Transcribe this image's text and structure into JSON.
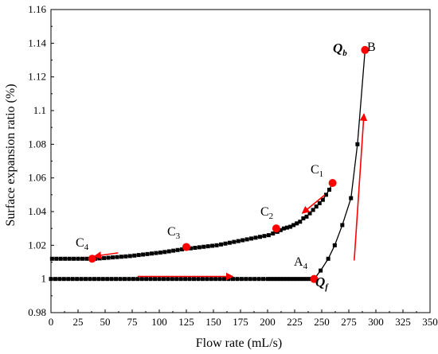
{
  "chart_data": {
    "type": "line",
    "xlabel": "Flow rate (mL/s)",
    "ylabel": "Surface expansion ratio (%)",
    "xlim": [
      0,
      350
    ],
    "ylim": [
      0.98,
      1.16
    ],
    "x_ticks": [
      0,
      25,
      50,
      75,
      100,
      125,
      150,
      175,
      200,
      225,
      250,
      275,
      300,
      325,
      350
    ],
    "y_ticks": [
      0.98,
      1,
      1.02,
      1.04,
      1.06,
      1.08,
      1.1,
      1.12,
      1.14,
      1.16
    ],
    "y_tick_labels": [
      "0.98",
      "1",
      "1.02",
      "1.04",
      "1.06",
      "1.08",
      "1.1",
      "1.12",
      "1.14",
      "1.16"
    ],
    "grid": false,
    "series": [
      {
        "values": [
          [
            0,
            1.0
          ],
          [
            4,
            1.0
          ],
          [
            8,
            1.0
          ],
          [
            12,
            1.0
          ],
          [
            16,
            1.0
          ],
          [
            20,
            1.0
          ],
          [
            24,
            1.0
          ],
          [
            28,
            1.0
          ],
          [
            32,
            1.0
          ],
          [
            36,
            1.0
          ],
          [
            40,
            1.0
          ],
          [
            44,
            1.0
          ],
          [
            48,
            1.0
          ],
          [
            52,
            1.0
          ],
          [
            56,
            1.0
          ],
          [
            60,
            1.0
          ],
          [
            64,
            1.0
          ],
          [
            68,
            1.0
          ],
          [
            72,
            1.0
          ],
          [
            76,
            1.0
          ],
          [
            80,
            1.0
          ],
          [
            84,
            1.0
          ],
          [
            88,
            1.0
          ],
          [
            92,
            1.0
          ],
          [
            96,
            1.0
          ],
          [
            100,
            1.0
          ],
          [
            104,
            1.0
          ],
          [
            108,
            1.0
          ],
          [
            112,
            1.0
          ],
          [
            116,
            1.0
          ],
          [
            120,
            1.0
          ],
          [
            124,
            1.0
          ],
          [
            128,
            1.0
          ],
          [
            132,
            1.0
          ],
          [
            136,
            1.0
          ],
          [
            140,
            1.0
          ],
          [
            144,
            1.0
          ],
          [
            148,
            1.0
          ],
          [
            152,
            1.0
          ],
          [
            156,
            1.0
          ],
          [
            160,
            1.0
          ],
          [
            164,
            1.0
          ],
          [
            168,
            1.0
          ],
          [
            172,
            1.0
          ],
          [
            176,
            1.0
          ],
          [
            180,
            1.0
          ],
          [
            184,
            1.0
          ],
          [
            188,
            1.0
          ],
          [
            192,
            1.0
          ],
          [
            196,
            1.0
          ],
          [
            200,
            1.0
          ],
          [
            203,
            1.0
          ],
          [
            206,
            1.0
          ],
          [
            209,
            1.0
          ],
          [
            212,
            1.0
          ],
          [
            215,
            1.0
          ],
          [
            218,
            1.0
          ],
          [
            221,
            1.0
          ],
          [
            224,
            1.0
          ],
          [
            227,
            1.0
          ],
          [
            230,
            1.0
          ],
          [
            233,
            1.0
          ],
          [
            236,
            1.0
          ],
          [
            239,
            1.0
          ],
          [
            243,
            1.0
          ],
          [
            249,
            1.005
          ],
          [
            256,
            1.012
          ],
          [
            262,
            1.02
          ],
          [
            269,
            1.032
          ],
          [
            277,
            1.048
          ],
          [
            283,
            1.08
          ],
          [
            290,
            1.136
          ]
        ]
      },
      {
        "values": [
          [
            260,
            1.057
          ],
          [
            257,
            1.053
          ],
          [
            254,
            1.05
          ],
          [
            251,
            1.047
          ],
          [
            248,
            1.045
          ],
          [
            245,
            1.043
          ],
          [
            242,
            1.041
          ],
          [
            239,
            1.039
          ],
          [
            236,
            1.037
          ],
          [
            233,
            1.036
          ],
          [
            230,
            1.034
          ],
          [
            227,
            1.033
          ],
          [
            224,
            1.032
          ],
          [
            221,
            1.031
          ],
          [
            218,
            1.0305
          ],
          [
            215,
            1.03
          ],
          [
            212,
            1.029
          ],
          [
            209,
            1.028
          ],
          [
            205,
            1.027
          ],
          [
            201,
            1.026
          ],
          [
            197,
            1.0255
          ],
          [
            193,
            1.025
          ],
          [
            189,
            1.0245
          ],
          [
            185,
            1.024
          ],
          [
            181,
            1.0235
          ],
          [
            177,
            1.023
          ],
          [
            173,
            1.0225
          ],
          [
            169,
            1.022
          ],
          [
            165,
            1.0215
          ],
          [
            161,
            1.021
          ],
          [
            157,
            1.0205
          ],
          [
            153,
            1.02
          ],
          [
            149,
            1.0197
          ],
          [
            145,
            1.0194
          ],
          [
            141,
            1.0191
          ],
          [
            137,
            1.0188
          ],
          [
            133,
            1.0185
          ],
          [
            129,
            1.0182
          ],
          [
            125,
            1.018
          ],
          [
            121,
            1.0176
          ],
          [
            117,
            1.0172
          ],
          [
            113,
            1.0168
          ],
          [
            109,
            1.0164
          ],
          [
            105,
            1.016
          ],
          [
            101,
            1.0157
          ],
          [
            97,
            1.0154
          ],
          [
            93,
            1.0151
          ],
          [
            89,
            1.0148
          ],
          [
            85,
            1.0145
          ],
          [
            81,
            1.0142
          ],
          [
            77,
            1.0139
          ],
          [
            73,
            1.0136
          ],
          [
            69,
            1.0134
          ],
          [
            65,
            1.0132
          ],
          [
            61,
            1.013
          ],
          [
            57,
            1.0128
          ],
          [
            53,
            1.0126
          ],
          [
            49,
            1.0124
          ],
          [
            45,
            1.0122
          ],
          [
            41,
            1.012
          ],
          [
            37,
            1.012
          ],
          [
            33,
            1.012
          ],
          [
            29,
            1.012
          ],
          [
            25,
            1.012
          ],
          [
            21,
            1.012
          ],
          [
            17,
            1.012
          ],
          [
            13,
            1.012
          ],
          [
            9,
            1.012
          ],
          [
            5,
            1.012
          ],
          [
            1,
            1.012
          ]
        ]
      }
    ],
    "highlight_points": [
      {
        "id": "A4",
        "x": 243,
        "y": 1.0
      },
      {
        "id": "B",
        "x": 290,
        "y": 1.136
      },
      {
        "id": "C1",
        "x": 260,
        "y": 1.057
      },
      {
        "id": "C2",
        "x": 208,
        "y": 1.03
      },
      {
        "id": "C3",
        "x": 125,
        "y": 1.019
      },
      {
        "id": "C4",
        "x": 38,
        "y": 1.012
      }
    ],
    "annotations": {
      "a4": {
        "main": "A",
        "sub": "4"
      },
      "qf": {
        "main": "Q",
        "sub": "f"
      },
      "qb": {
        "main": "Q",
        "sub": "b"
      },
      "b": "B",
      "c1": {
        "main": "C",
        "sub": "1"
      },
      "c2": {
        "main": "C",
        "sub": "2"
      },
      "c3": {
        "main": "C",
        "sub": "3"
      },
      "c4": {
        "main": "C",
        "sub": "4"
      }
    },
    "arrows": [
      {
        "from": [
          80,
          1.0015
        ],
        "to": [
          168,
          1.0015
        ]
      },
      {
        "from": [
          62,
          1.0155
        ],
        "to": [
          40,
          1.0135
        ]
      },
      {
        "from": [
          253,
          1.05
        ],
        "to": [
          232,
          1.039
        ]
      },
      {
        "from": [
          280,
          1.011
        ],
        "to": [
          289,
          1.098
        ]
      }
    ],
    "colors": {
      "series": "#000000",
      "highlight": "#ff0000",
      "arrow": "#ff0000"
    }
  }
}
